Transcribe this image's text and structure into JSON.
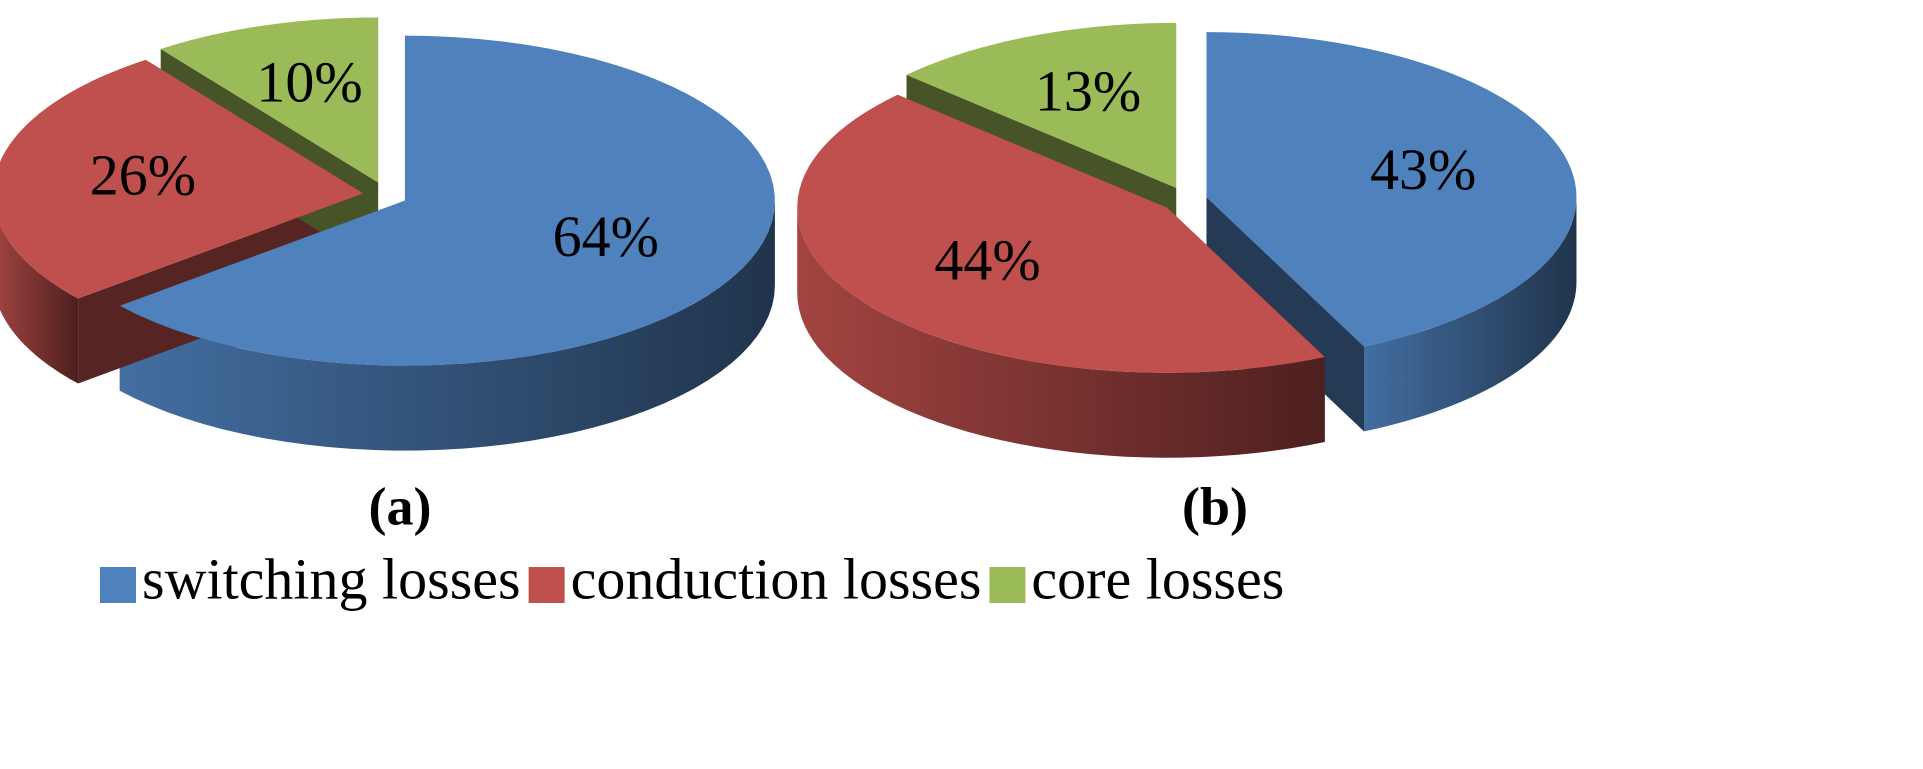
{
  "chart_data": [
    {
      "type": "pie",
      "title": "(a)",
      "values": [
        64,
        26,
        10
      ],
      "value_labels": [
        "64%",
        "26%",
        "10%"
      ]
    },
    {
      "type": "pie",
      "title": "(b)",
      "values": [
        43,
        44,
        13
      ],
      "value_labels": [
        "43%",
        "44%",
        "13%"
      ]
    }
  ],
  "legend": {
    "categories": [
      "switching losses",
      "conduction losses",
      "core losses"
    ],
    "colors": [
      "#4f81bd",
      "#c0504d",
      "#9bbb59"
    ]
  }
}
